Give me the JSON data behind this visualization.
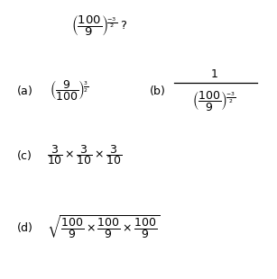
{
  "background_color": "#ffffff",
  "fig_width": 3.07,
  "fig_height": 3.1,
  "dpi": 100,
  "font_size_label": 9,
  "font_size_expr": 9,
  "font_size_question": 9.5
}
